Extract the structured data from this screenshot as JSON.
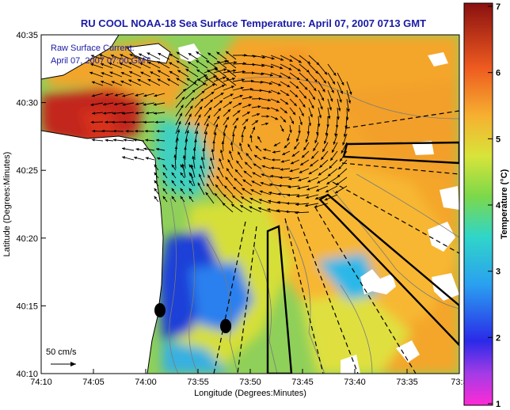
{
  "title": "RU COOL  NOAA-18  Sea Surface Temperature:  April 07, 2007 0713 GMT",
  "legend": {
    "line1": "Raw Surface Current:",
    "line2": "April 07, 2007 07:00 GMT"
  },
  "scale_bar_label": "50 cm/s",
  "axes": {
    "xlabel": "Longitude (Degrees:Minutes)",
    "ylabel": "Latitude (Degrees:Minutes)",
    "xticks": [
      "74:10",
      "74:05",
      "74:00",
      "73:55",
      "73:50",
      "73:45",
      "73:40",
      "73:35",
      "73:3"
    ],
    "yticks": [
      "40:35",
      "40:30",
      "40:25",
      "40:20",
      "40:15",
      "40:10"
    ]
  },
  "colorbar": {
    "label": "Temperature (°C)",
    "ticks": [
      "7",
      "6",
      "5",
      "4",
      "3",
      "2",
      "1"
    ],
    "range": [
      1,
      7
    ]
  },
  "colors": {
    "title": "#1a1aa6",
    "land": "#ffffff",
    "cold": "#1f3fd8",
    "warm": "#f2a52a",
    "hot": "#c0221a"
  }
}
